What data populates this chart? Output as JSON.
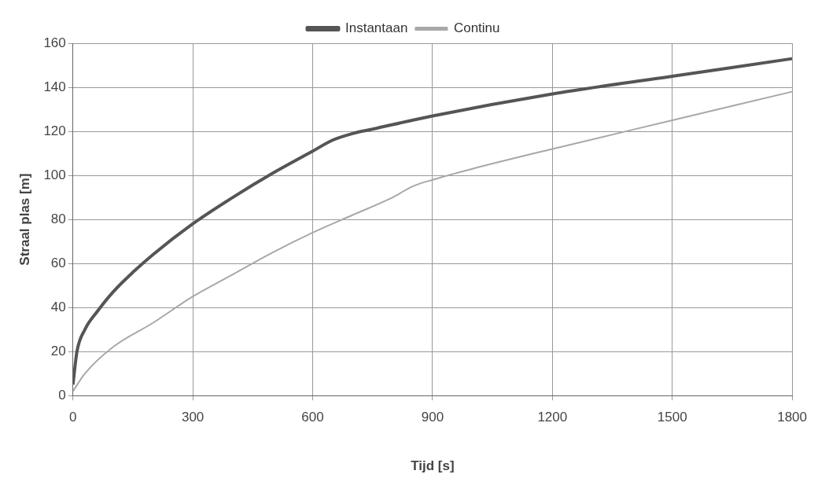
{
  "chart_data": {
    "type": "line",
    "xlabel": "Tijd [s]",
    "ylabel": "Straal plas [m]",
    "xlim": [
      0,
      1800
    ],
    "xticks": [
      0,
      300,
      600,
      900,
      1200,
      1500,
      1800
    ],
    "ylim": [
      0,
      160
    ],
    "yticks": [
      0,
      20,
      40,
      60,
      80,
      100,
      120,
      140,
      160
    ],
    "grid": true,
    "legend": "top",
    "marker": "none",
    "series": [
      {
        "name": "Instantaan",
        "color": "#555555",
        "x": [
          0,
          10,
          30,
          60,
          100,
          150,
          200,
          300,
          400,
          500,
          600,
          650,
          700,
          750,
          900,
          1200,
          1500,
          1800
        ],
        "values": [
          5,
          20,
          30,
          38,
          47,
          56,
          64,
          78,
          90,
          101,
          111,
          116,
          119,
          121,
          127,
          137,
          145,
          153
        ]
      },
      {
        "name": "Continu",
        "color": "#a8a8a8",
        "x": [
          0,
          30,
          100,
          200,
          300,
          400,
          500,
          600,
          700,
          800,
          850,
          900,
          1000,
          1200,
          1500,
          1800
        ],
        "values": [
          2,
          10,
          22,
          33,
          45,
          55,
          65,
          74,
          82,
          90,
          95,
          98,
          103,
          112,
          125,
          138
        ]
      }
    ]
  }
}
